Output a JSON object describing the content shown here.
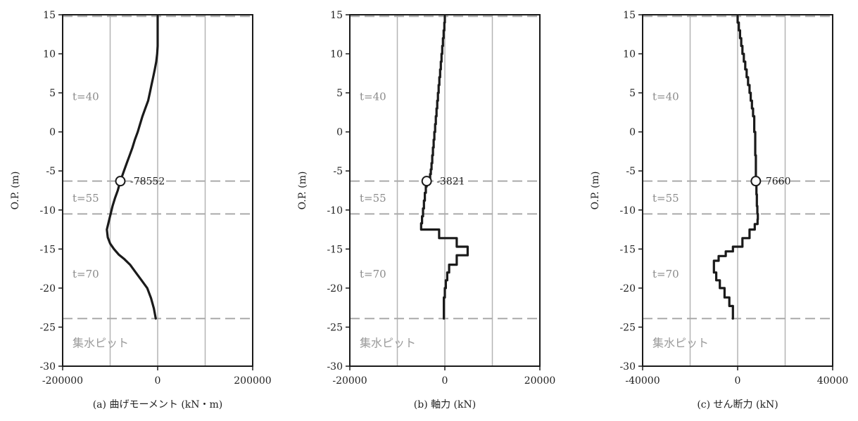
{
  "chart_data": [
    {
      "type": "line",
      "caption": "(a) 曲げモーメント (kN・m)",
      "ylabel": "O.P. (m)",
      "xlim": [
        -200000,
        200000
      ],
      "ylim": [
        -30,
        15
      ],
      "xticks": [
        -200000,
        0,
        200000
      ],
      "xtick_labels": [
        "-200000",
        "0",
        "200000"
      ],
      "grid_x": [
        -100000,
        0,
        100000
      ],
      "yticks": [
        15,
        10,
        5,
        0,
        -5,
        -10,
        -15,
        -20,
        -25,
        -30
      ],
      "ytick_labels": [
        "15",
        "10",
        "5",
        "0",
        "-5",
        "-10",
        "-15",
        "-20",
        "-25",
        "-30"
      ],
      "dashed_levels": [
        14.8,
        -6.3,
        -10.5,
        -23.9
      ],
      "zones": [
        {
          "label": "t=40",
          "y": 4.5
        },
        {
          "label": "t=55",
          "y": -8.5
        },
        {
          "label": "t=70",
          "y": -18.2
        }
      ],
      "pit_label": "集水ピット",
      "pit_y": -27,
      "series": [
        {
          "x": [
            0,
            0,
            0,
            0,
            -1000,
            -3000,
            -6000,
            -9500,
            -13000,
            -16500,
            -20000,
            -26000,
            -32000,
            -37000,
            -42000,
            -48000,
            -53000,
            -59000,
            -65000,
            -71000,
            -78552,
            -84000,
            -90000,
            -95000,
            -99000,
            -103000,
            -107000,
            -105000,
            -100000,
            -92000,
            -82000,
            -70000,
            -58000,
            -46000,
            -34000,
            -22000,
            -14000,
            -8000,
            -4000
          ],
          "y": [
            14.8,
            13,
            12,
            11,
            10,
            9,
            8,
            7,
            6,
            5,
            4,
            3,
            2,
            1,
            0,
            -1,
            -2,
            -3,
            -4,
            -5,
            -6.3,
            -7.5,
            -8.5,
            -9.5,
            -10.5,
            -11.5,
            -12.5,
            -13.5,
            -14.3,
            -15,
            -15.7,
            -16.3,
            -17,
            -18,
            -19,
            -20,
            -21.3,
            -22.6,
            -23.9
          ]
        }
      ],
      "marker": {
        "x": -78552,
        "y": -6.3,
        "label": "-78552"
      }
    },
    {
      "type": "line",
      "caption": "(b) 軸力 (kN)",
      "ylabel": "O.P. (m)",
      "xlim": [
        -20000,
        20000
      ],
      "ylim": [
        -30,
        15
      ],
      "xticks": [
        -20000,
        0,
        20000
      ],
      "xtick_labels": [
        "-20000",
        "0",
        "20000"
      ],
      "grid_x": [
        -10000,
        0,
        10000
      ],
      "yticks": [
        15,
        10,
        5,
        0,
        -5,
        -10,
        -15,
        -20,
        -25,
        -30
      ],
      "ytick_labels": [
        "15",
        "10",
        "5",
        "0",
        "-5",
        "-10",
        "-15",
        "-20",
        "-25",
        "-30"
      ],
      "dashed_levels": [
        14.8,
        -6.3,
        -10.5,
        -23.9
      ],
      "zones": [
        {
          "label": "t=40",
          "y": 4.5
        },
        {
          "label": "t=55",
          "y": -8.5
        },
        {
          "label": "t=70",
          "y": -18.2
        }
      ],
      "pit_label": "集水ピット",
      "pit_y": -27,
      "series": [
        {
          "x": [
            0,
            0,
            -100,
            -100,
            -250,
            -250,
            -400,
            -400,
            -550,
            -550,
            -700,
            -700,
            -850,
            -850,
            -1000,
            -1000,
            -1150,
            -1150,
            -1300,
            -1300,
            -1450,
            -1450,
            -1600,
            -1600,
            -1750,
            -1750,
            -1900,
            -1900,
            -2050,
            -2050,
            -2200,
            -2200,
            -2350,
            -2350,
            -2500,
            -2500,
            -2650,
            -2650,
            -2800,
            -2800,
            -2950,
            -2950,
            -3100,
            -3100,
            -3250,
            -3250,
            -3400,
            -3400,
            -3550,
            -3550,
            -3700,
            -3700,
            -3821,
            -3821,
            -4000,
            -4000,
            -4200,
            -4200,
            -4400,
            -4400,
            -4600,
            -4600,
            -4800,
            -4800,
            -5000,
            -5000,
            -1200,
            -1200,
            2500,
            2500,
            4800,
            4800,
            2500,
            2500,
            900,
            900,
            500,
            500,
            200,
            200,
            0,
            0,
            -200,
            -200
          ],
          "y": [
            14.8,
            14,
            14,
            13,
            13,
            12,
            12,
            11,
            11,
            10,
            10,
            9,
            9,
            8,
            8,
            7,
            7,
            6,
            6,
            5,
            5,
            4,
            4,
            3,
            3,
            2,
            2,
            1,
            1,
            0,
            0,
            -1,
            -1,
            -2,
            -2,
            -3,
            -3,
            -4,
            -4,
            -4.8,
            -4.8,
            -5.4,
            -5.4,
            -6,
            -6,
            -6.3,
            -6.3,
            -6.3,
            -6.3,
            -6.3,
            -6.3,
            -6.3,
            -6.3,
            -7,
            -7,
            -7.8,
            -7.8,
            -8.8,
            -8.8,
            -9.8,
            -9.8,
            -10.8,
            -10.8,
            -11.7,
            -11.7,
            -12.5,
            -12.5,
            -13.6,
            -13.6,
            -14.7,
            -14.7,
            -15.8,
            -15.8,
            -17,
            -17,
            -18,
            -18,
            -19,
            -19,
            -20,
            -20,
            -21.2,
            -21.2,
            -23.9
          ]
        }
      ],
      "marker": {
        "x": -3821,
        "y": -6.3,
        "label": "-3821"
      }
    },
    {
      "type": "line",
      "caption": "(c) せん断力 (kN)",
      "ylabel": "O.P. (m)",
      "xlim": [
        -40000,
        40000
      ],
      "ylim": [
        -30,
        15
      ],
      "xticks": [
        -40000,
        0,
        40000
      ],
      "xtick_labels": [
        "-40000",
        "0",
        "40000"
      ],
      "grid_x": [
        -20000,
        0,
        20000
      ],
      "yticks": [
        15,
        10,
        5,
        0,
        -5,
        -10,
        -15,
        -20,
        -25,
        -30
      ],
      "ytick_labels": [
        "15",
        "10",
        "5",
        "0",
        "-5",
        "-10",
        "-15",
        "-20",
        "-25",
        "-30"
      ],
      "dashed_levels": [
        14.8,
        -6.3,
        -10.5,
        -23.9
      ],
      "zones": [
        {
          "label": "t=40",
          "y": 4.5
        },
        {
          "label": "t=55",
          "y": -8.5
        },
        {
          "label": "t=70",
          "y": -18.2
        }
      ],
      "pit_label": "集水ピット",
      "pit_y": -27,
      "series": [
        {
          "x": [
            0,
            0,
            500,
            500,
            1000,
            1000,
            1500,
            1500,
            2000,
            2000,
            2600,
            2600,
            3200,
            3200,
            3800,
            3800,
            4400,
            4400,
            5000,
            5000,
            5500,
            5500,
            6000,
            6000,
            6500,
            6500,
            7000,
            7000,
            7400,
            7400,
            7660,
            7660,
            7900,
            7900,
            8100,
            8100,
            8300,
            8300,
            8500,
            8500,
            8400,
            8400,
            7200,
            7200,
            5000,
            5000,
            2000,
            2000,
            -2000,
            -2000,
            -5000,
            -5000,
            -8000,
            -8000,
            -10000,
            -10000,
            -9000,
            -9000,
            -7500,
            -7500,
            -5500,
            -5500,
            -3500,
            -3500,
            -2000,
            -2000
          ],
          "y": [
            14.8,
            14,
            14,
            13,
            13,
            12,
            12,
            11,
            11,
            10,
            10,
            9,
            9,
            8,
            8,
            7,
            7,
            6,
            6,
            5,
            5,
            4,
            4,
            3,
            3,
            2,
            2,
            0,
            0,
            -3,
            -3,
            -6.3,
            -6.3,
            -8,
            -8,
            -9.5,
            -9.5,
            -10.5,
            -10.5,
            -11.2,
            -11.2,
            -11.8,
            -11.8,
            -12.5,
            -12.5,
            -13.6,
            -13.6,
            -14.7,
            -14.7,
            -15.3,
            -15.3,
            -15.9,
            -15.9,
            -16.5,
            -16.5,
            -18,
            -18,
            -19,
            -19,
            -20,
            -20,
            -21.2,
            -21.2,
            -22.3,
            -22.3,
            -23.9
          ]
        }
      ],
      "marker": {
        "x": 7660,
        "y": -6.3,
        "label": "7660"
      }
    }
  ]
}
